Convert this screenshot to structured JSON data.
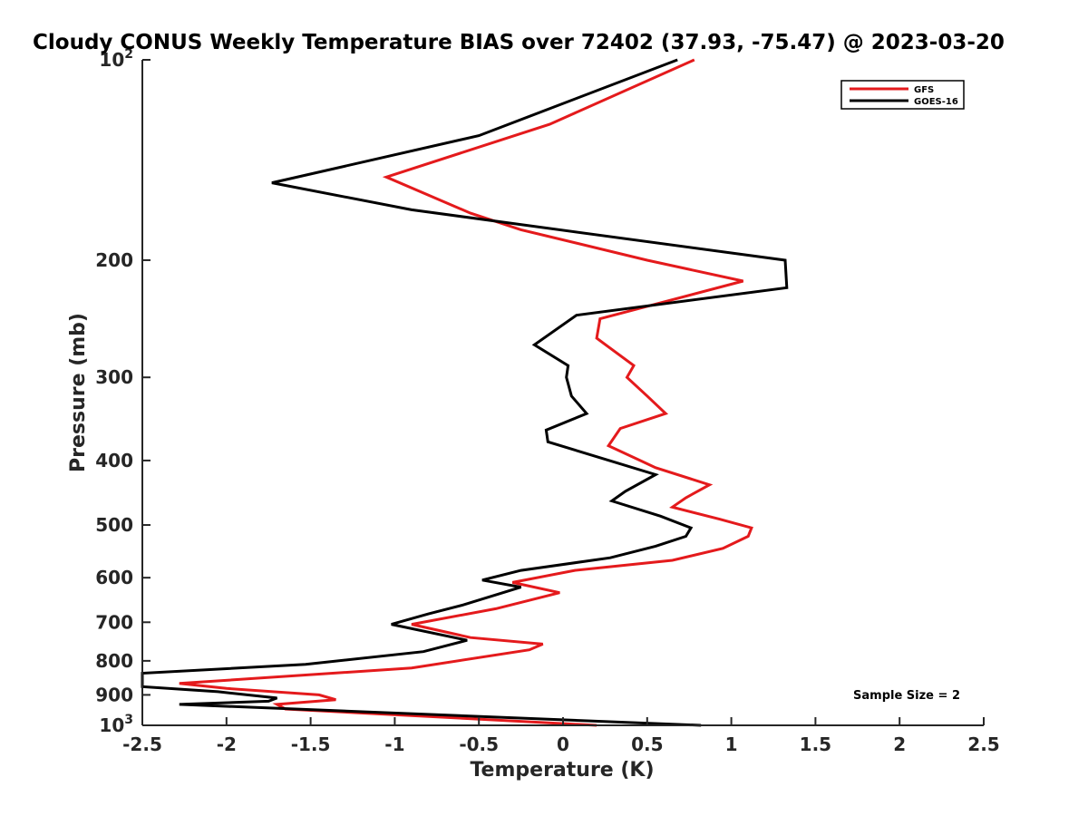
{
  "chart_data": {
    "type": "line",
    "title": "Cloudy CONUS Weekly Temperature BIAS over 72402 (37.93, -75.47) @ 2023-03-20",
    "xlabel": "Temperature (K)",
    "ylabel": "Pressure (mb)",
    "xlim": [
      -2.5,
      2.5
    ],
    "ylim": [
      100,
      1000
    ],
    "y_scale": "log",
    "y_reversed": true,
    "grid": false,
    "legend_position": "top-right",
    "x_ticks": [
      "-2.5",
      "-2",
      "-1.5",
      "-1",
      "-0.5",
      "0",
      "0.5",
      "1",
      "1.5",
      "2",
      "2.5"
    ],
    "y_ticks": [
      {
        "value": 100,
        "base": "10",
        "exp": "2"
      },
      {
        "value": 200,
        "label": "200"
      },
      {
        "value": 300,
        "label": "300"
      },
      {
        "value": 400,
        "label": "400"
      },
      {
        "value": 500,
        "label": "500"
      },
      {
        "value": 600,
        "label": "600"
      },
      {
        "value": 700,
        "label": "700"
      },
      {
        "value": 800,
        "label": "800"
      },
      {
        "value": 900,
        "label": "900"
      },
      {
        "value": 1000,
        "base": "10",
        "exp": "3"
      }
    ],
    "annotation": "Sample Size = 2",
    "series": [
      {
        "name": "GFS",
        "color": "#e41a1c",
        "points": [
          [
            0.78,
            100
          ],
          [
            -0.08,
            125
          ],
          [
            -1.05,
            150
          ],
          [
            -0.55,
            170
          ],
          [
            -0.25,
            180
          ],
          [
            0.5,
            200
          ],
          [
            1.07,
            215
          ],
          [
            0.22,
            245
          ],
          [
            0.2,
            262
          ],
          [
            0.42,
            288
          ],
          [
            0.38,
            300
          ],
          [
            0.5,
            320
          ],
          [
            0.61,
            340
          ],
          [
            0.34,
            358
          ],
          [
            0.27,
            380
          ],
          [
            0.55,
            410
          ],
          [
            0.87,
            435
          ],
          [
            0.73,
            455
          ],
          [
            0.65,
            470
          ],
          [
            0.93,
            490
          ],
          [
            1.12,
            505
          ],
          [
            1.1,
            520
          ],
          [
            0.95,
            542
          ],
          [
            0.65,
            565
          ],
          [
            0.07,
            585
          ],
          [
            -0.3,
            610
          ],
          [
            -0.02,
            632
          ],
          [
            -0.4,
            668
          ],
          [
            -0.9,
            705
          ],
          [
            -0.55,
            738
          ],
          [
            -0.12,
            755
          ],
          [
            -0.2,
            770
          ],
          [
            -0.9,
            820
          ],
          [
            -2.28,
            865
          ],
          [
            -2.0,
            880
          ],
          [
            -1.45,
            900
          ],
          [
            -1.35,
            915
          ],
          [
            -1.7,
            930
          ],
          [
            -1.65,
            945
          ],
          [
            0.2,
            1000
          ]
        ]
      },
      {
        "name": "GOES-16",
        "color": "#000000",
        "points": [
          [
            0.68,
            100
          ],
          [
            -0.5,
            130
          ],
          [
            -1.73,
            153
          ],
          [
            -0.9,
            168
          ],
          [
            1.32,
            200
          ],
          [
            1.33,
            220
          ],
          [
            0.08,
            242
          ],
          [
            -0.17,
            268
          ],
          [
            0.03,
            288
          ],
          [
            0.02,
            300
          ],
          [
            0.05,
            320
          ],
          [
            0.14,
            340
          ],
          [
            -0.1,
            360
          ],
          [
            -0.09,
            375
          ],
          [
            0.55,
            420
          ],
          [
            0.37,
            445
          ],
          [
            0.29,
            460
          ],
          [
            0.58,
            485
          ],
          [
            0.76,
            505
          ],
          [
            0.73,
            520
          ],
          [
            0.55,
            538
          ],
          [
            0.28,
            560
          ],
          [
            -0.25,
            585
          ],
          [
            -0.48,
            605
          ],
          [
            -0.25,
            620
          ],
          [
            -0.6,
            660
          ],
          [
            -0.8,
            680
          ],
          [
            -1.02,
            705
          ],
          [
            -0.57,
            745
          ],
          [
            -0.83,
            775
          ],
          [
            -1.53,
            810
          ],
          [
            -2.5,
            835
          ],
          [
            -2.5,
            875
          ],
          [
            -2.05,
            890
          ],
          [
            -1.7,
            910
          ],
          [
            -1.75,
            920
          ],
          [
            -2.28,
            930
          ],
          [
            0.82,
            1000
          ]
        ]
      }
    ]
  }
}
